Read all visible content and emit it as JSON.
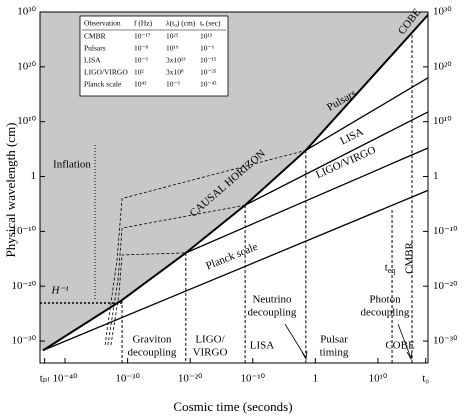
{
  "chart_data": {
    "type": "line",
    "x_label": "Cosmic time (seconds)",
    "y_label": "Physical wavelength (cm)",
    "xscale": "log",
    "yscale": "log",
    "xlim": [
      1e-44,
      1e+18
    ],
    "ylim": [
      1e-34,
      1e+30
    ],
    "xticks": [
      {
        "value": 5.4e-44,
        "label": "tₚₗ"
      },
      {
        "value": 1e-40,
        "label": "10⁻⁴⁰"
      },
      {
        "value": 1e-30,
        "label": "10⁻³⁰"
      },
      {
        "value": 1e-20,
        "label": "10⁻²⁰"
      },
      {
        "value": 1e-10,
        "label": "10⁻¹⁰"
      },
      1,
      {
        "value": 10000000000.0,
        "label": "10¹⁰"
      },
      {
        "value": 4.3e+17,
        "label": "t₀"
      }
    ],
    "yticks": [
      {
        "value": 1e+30,
        "label": "10³⁰"
      },
      {
        "value": 1e+20,
        "label": "10²⁰"
      },
      {
        "value": 10000000000.0,
        "label": "10¹⁰"
      },
      1,
      {
        "value": 1e-10,
        "label": "10⁻¹⁰"
      },
      {
        "value": 1e-20,
        "label": "10⁻²⁰"
      },
      {
        "value": 1e-30,
        "label": "10⁻³⁰"
      }
    ],
    "right_ticks": true,
    "shade_color": "#c8c8c8",
    "series": [
      {
        "name": "CAUSAL HORIZON",
        "color": "#000000",
        "style": "solid",
        "width": 2,
        "shade_above": true,
        "x": [
          3e-44,
          1.3e-31,
          2e-21,
          6e-12,
          0.03,
          1e+18
        ],
        "values": [
          2e-32,
          3e-23,
          1.2e-14,
          6e-06,
          60000.0,
          3e+29
        ]
      },
      {
        "name": "Pulsars",
        "color": "#000000",
        "style": "solid",
        "width": 1.3,
        "x": [
          0.03,
          1e+18
        ],
        "values": [
          60000.0,
          1e+18
        ]
      },
      {
        "name": "LISA",
        "color": "#000000",
        "style": "solid",
        "width": 1.3,
        "x": [
          6e-12,
          1e+18
        ],
        "values": [
          6e-06,
          600000000000.0
        ]
      },
      {
        "name": "LIGO/VIRGO",
        "color": "#000000",
        "style": "solid",
        "width": 1.3,
        "x": [
          2e-21,
          1e+18
        ],
        "values": [
          1.2e-14,
          160000.0
        ]
      },
      {
        "name": "Planck scale",
        "color": "#000000",
        "style": "solid",
        "width": 1.3,
        "x": [
          3e-44,
          1e+18
        ],
        "values": [
          2e-32,
          0.003
        ]
      },
      {
        "color": "#000000",
        "style": "dashed",
        "width": 0.8,
        "x": [
          2.5e-34,
          2e-32,
          1.3e-31,
          0.03
        ],
        "values": [
          2e-31,
          6e-16,
          0.0001,
          60000.0
        ]
      },
      {
        "color": "#000000",
        "style": "dashed",
        "width": 0.8,
        "x": [
          7e-34,
          2.9e-32,
          1.3e-31,
          6e-12
        ],
        "values": [
          2e-31,
          1.3e-19,
          4e-10,
          6e-06
        ]
      },
      {
        "color": "#000000",
        "style": "dashed",
        "width": 0.8,
        "x": [
          2.2e-33,
          4e-32,
          1.3e-31,
          2e-21
        ],
        "values": [
          2e-31,
          2.5e-22,
          5e-15,
          1.2e-14
        ]
      }
    ],
    "vlines": [
      {
        "x": 1.3e-31,
        "y": 3e-23
      },
      {
        "x": 2e-21,
        "y": 1.2e-14
      },
      {
        "x": 6e-12,
        "y": 6e-06
      },
      {
        "x": 0.03,
        "y": 60000.0
      },
      {
        "x": 1800000000000.0,
        "y": 8e-07
      },
      {
        "x": 2800000000000000.0,
        "y": 6e+25
      }
    ],
    "annotations": [
      {
        "text": [
          "Inflation"
        ]
      },
      {
        "text": [
          "H⁻¹"
        ]
      },
      {
        "text": [
          "COBE"
        ]
      },
      {
        "text": [
          "Graviton",
          "decoupling"
        ]
      },
      {
        "text": [
          "LIGO/",
          "VIRGO"
        ]
      },
      {
        "text": [
          "LISA"
        ]
      },
      {
        "text": [
          "Neutrino",
          "decoupling"
        ]
      },
      {
        "text": [
          "Pulsar",
          "timing"
        ]
      },
      {
        "text": [
          "Photon",
          "decoupling"
        ]
      },
      {
        "text": [
          "COBE"
        ]
      },
      {
        "text": [
          "t"
        ],
        "subscript": "eq"
      },
      {
        "text": [
          "CMBR"
        ]
      }
    ],
    "table": {
      "columns": [
        "Observation",
        "f (Hz)",
        "λ(t₀) (cm)",
        "tₑ (sec)"
      ],
      "rows": [
        [
          "CMBR",
          "10⁻¹⁷",
          "10²⁵",
          "10¹³"
        ],
        [
          "Pulsars",
          "10⁻⁸",
          "10¹⁹",
          "10⁻⁶"
        ],
        [
          "LISA",
          "10⁻³",
          "3x10¹³",
          "10⁻¹⁵"
        ],
        [
          "LIGO/VIRGO",
          "10²",
          "3x10⁸",
          "10⁻²⁵"
        ],
        [
          "Planck scale",
          "10⁴³",
          "10⁻³",
          "10⁻⁴³"
        ]
      ]
    }
  }
}
